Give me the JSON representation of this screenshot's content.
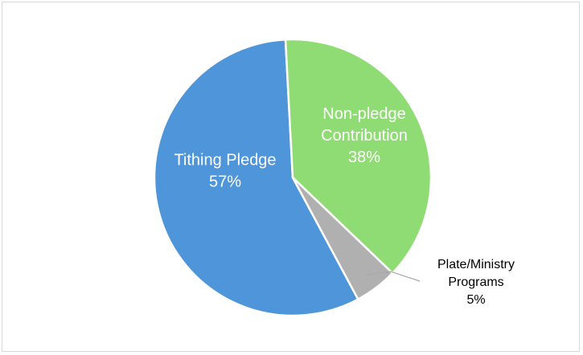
{
  "chart_data": {
    "type": "pie",
    "title": "",
    "slices": [
      {
        "name": "Tithing Pledge",
        "label_lines": [
          "Tithing Pledge"
        ],
        "percent_label": "57%",
        "value": 57,
        "color": "#4e95d9"
      },
      {
        "name": "Non-pledge Contribution",
        "label_lines": [
          "Non-pledge",
          "Contribution"
        ],
        "percent_label": "38%",
        "value": 38,
        "color": "#90dc74"
      },
      {
        "name": "Plate/Ministry Programs",
        "label_lines": [
          "Plate/Ministry",
          "Programs"
        ],
        "percent_label": "5%",
        "value": 5,
        "color": "#b0b0b0"
      }
    ],
    "leader_line_color": "#a6a6a6",
    "legend": "none"
  }
}
